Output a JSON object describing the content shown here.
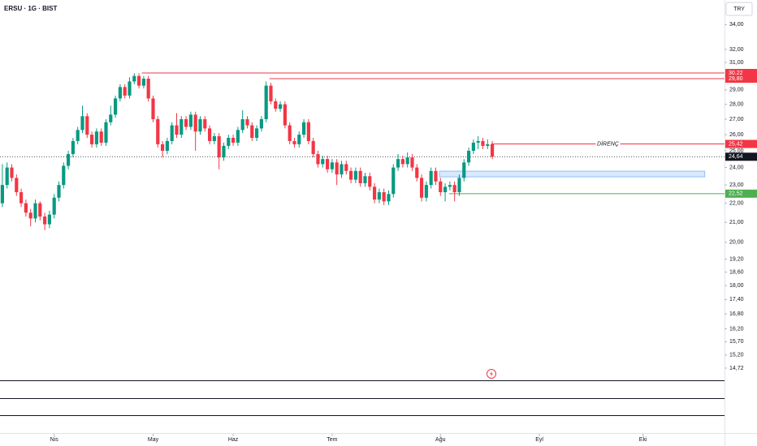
{
  "chart_data": {
    "type": "candlestick",
    "title": "ERSU · 1G · BIST",
    "currency": "TRY",
    "log_scale": true,
    "up_color": "#089981",
    "down_color": "#f23645",
    "xlim": [
      -0.5,
      153.3
    ],
    "xticks": [
      {
        "value": 11,
        "label": "Nis"
      },
      {
        "value": 32,
        "label": "May"
      },
      {
        "value": 49,
        "label": "Haz"
      },
      {
        "value": 70,
        "label": "Tem"
      },
      {
        "value": 93,
        "label": "Ağu"
      },
      {
        "value": 114,
        "label": "Eyl"
      },
      {
        "value": 136,
        "label": "Eki"
      }
    ],
    "ylim": [
      14.29,
      36.1
    ],
    "yticks": [
      {
        "value": 34,
        "label": "34,00"
      },
      {
        "value": 32,
        "label": "32,00"
      },
      {
        "value": 31,
        "label": "31,00"
      },
      {
        "value": 30,
        "label": "30,00"
      },
      {
        "value": 29,
        "label": "29,00"
      },
      {
        "value": 28,
        "label": "28,00"
      },
      {
        "value": 27,
        "label": "27,00"
      },
      {
        "value": 26,
        "label": "26,00"
      },
      {
        "value": 25,
        "label": "25,00"
      },
      {
        "value": 24,
        "label": "24,00"
      },
      {
        "value": 23,
        "label": "23,00"
      },
      {
        "value": 22,
        "label": "22,00"
      },
      {
        "value": 21,
        "label": "21,00"
      },
      {
        "value": 20,
        "label": "20,00"
      },
      {
        "value": 19.2,
        "label": "19,20"
      },
      {
        "value": 18.6,
        "label": "18,60"
      },
      {
        "value": 18,
        "label": "18,00"
      },
      {
        "value": 17.4,
        "label": "17,40"
      },
      {
        "value": 16.8,
        "label": "16,80"
      },
      {
        "value": 16.2,
        "label": "16,20"
      },
      {
        "value": 15.7,
        "label": "15,70"
      },
      {
        "value": 15.2,
        "label": "15,20"
      },
      {
        "value": 14.72,
        "label": "14,72"
      }
    ],
    "ohlc": [
      [
        22.0,
        24.2,
        21.8,
        23.0
      ],
      [
        23.0,
        24.3,
        22.8,
        24.0
      ],
      [
        24.0,
        24.2,
        23.2,
        23.4
      ],
      [
        23.4,
        23.6,
        22.4,
        22.6
      ],
      [
        22.6,
        22.8,
        21.8,
        22.0
      ],
      [
        22.0,
        22.2,
        21.3,
        21.5
      ],
      [
        21.5,
        21.7,
        20.8,
        21.2
      ],
      [
        21.2,
        22.2,
        21.0,
        22.0
      ],
      [
        22.0,
        22.1,
        21.1,
        21.3
      ],
      [
        21.3,
        21.5,
        20.6,
        20.9
      ],
      [
        20.9,
        21.6,
        20.7,
        21.4
      ],
      [
        21.4,
        22.5,
        21.2,
        22.3
      ],
      [
        22.3,
        23.2,
        22.1,
        23.0
      ],
      [
        23.0,
        24.3,
        22.8,
        24.1
      ],
      [
        24.1,
        25.0,
        23.9,
        24.8
      ],
      [
        24.8,
        25.8,
        24.6,
        25.6
      ],
      [
        25.6,
        26.5,
        25.4,
        26.3
      ],
      [
        26.3,
        27.9,
        26.1,
        27.2
      ],
      [
        27.2,
        27.4,
        25.8,
        26.0
      ],
      [
        26.0,
        26.2,
        25.2,
        25.4
      ],
      [
        25.4,
        26.4,
        25.2,
        26.2
      ],
      [
        26.2,
        26.4,
        25.3,
        25.5
      ],
      [
        25.5,
        27.0,
        25.3,
        26.8
      ],
      [
        26.8,
        27.9,
        26.6,
        27.3
      ],
      [
        27.3,
        28.6,
        27.1,
        28.4
      ],
      [
        28.4,
        29.4,
        28.2,
        29.2
      ],
      [
        29.2,
        29.4,
        28.4,
        28.6
      ],
      [
        28.6,
        29.9,
        28.4,
        29.6
      ],
      [
        29.6,
        30.2,
        29.4,
        30.0
      ],
      [
        30.0,
        30.2,
        29.1,
        29.3
      ],
      [
        29.3,
        30.0,
        29.1,
        29.8
      ],
      [
        29.8,
        30.0,
        28.2,
        28.4
      ],
      [
        28.4,
        28.6,
        26.8,
        27.0
      ],
      [
        27.0,
        27.2,
        25.2,
        25.4
      ],
      [
        25.4,
        25.6,
        24.6,
        25.0
      ],
      [
        25.0,
        25.8,
        24.8,
        25.6
      ],
      [
        25.6,
        26.8,
        25.4,
        26.6
      ],
      [
        26.6,
        27.4,
        25.8,
        26.0
      ],
      [
        26.0,
        27.2,
        25.8,
        27.0
      ],
      [
        27.0,
        27.2,
        26.3,
        26.5
      ],
      [
        26.5,
        27.5,
        26.3,
        27.3
      ],
      [
        27.3,
        27.5,
        25.0,
        26.2
      ],
      [
        26.2,
        27.2,
        26.0,
        27.0
      ],
      [
        27.0,
        27.2,
        26.2,
        26.4
      ],
      [
        26.4,
        26.6,
        25.4,
        25.6
      ],
      [
        25.6,
        26.1,
        25.4,
        25.9
      ],
      [
        25.9,
        26.1,
        23.9,
        24.6
      ],
      [
        24.6,
        25.5,
        24.4,
        25.3
      ],
      [
        25.3,
        26.0,
        25.1,
        25.8
      ],
      [
        25.8,
        26.0,
        25.3,
        25.5
      ],
      [
        25.5,
        26.5,
        25.3,
        26.3
      ],
      [
        26.3,
        27.6,
        26.1,
        27.0
      ],
      [
        27.0,
        27.2,
        26.4,
        26.6
      ],
      [
        26.6,
        26.8,
        25.6,
        25.8
      ],
      [
        25.8,
        26.6,
        25.6,
        26.4
      ],
      [
        26.4,
        27.2,
        26.2,
        27.0
      ],
      [
        27.0,
        29.6,
        26.8,
        29.3
      ],
      [
        29.3,
        29.5,
        28.0,
        28.2
      ],
      [
        28.2,
        28.4,
        27.5,
        27.7
      ],
      [
        27.7,
        28.2,
        27.5,
        28.0
      ],
      [
        28.0,
        28.2,
        26.4,
        26.6
      ],
      [
        26.6,
        26.8,
        25.4,
        25.6
      ],
      [
        25.6,
        25.8,
        25.2,
        25.4
      ],
      [
        25.4,
        26.2,
        25.2,
        26.0
      ],
      [
        26.0,
        27.0,
        25.8,
        26.8
      ],
      [
        26.8,
        27.0,
        25.4,
        25.6
      ],
      [
        25.6,
        25.8,
        24.6,
        24.8
      ],
      [
        24.8,
        25.0,
        24.0,
        24.2
      ],
      [
        24.2,
        24.7,
        24.0,
        24.5
      ],
      [
        24.5,
        24.7,
        23.7,
        23.9
      ],
      [
        23.9,
        24.5,
        23.7,
        24.3
      ],
      [
        24.3,
        24.5,
        23.0,
        23.6
      ],
      [
        23.6,
        24.4,
        23.4,
        24.2
      ],
      [
        24.2,
        24.4,
        23.6,
        23.8
      ],
      [
        23.8,
        24.0,
        23.1,
        23.3
      ],
      [
        23.3,
        24.0,
        23.1,
        23.8
      ],
      [
        23.8,
        24.0,
        22.9,
        23.1
      ],
      [
        23.1,
        23.7,
        22.9,
        23.5
      ],
      [
        23.5,
        23.7,
        22.7,
        22.9
      ],
      [
        22.9,
        23.1,
        22.0,
        22.2
      ],
      [
        22.2,
        22.8,
        22.0,
        22.6
      ],
      [
        22.6,
        22.8,
        21.9,
        22.1
      ],
      [
        22.1,
        22.7,
        21.9,
        22.5
      ],
      [
        22.5,
        24.2,
        22.3,
        24.0
      ],
      [
        24.0,
        24.8,
        23.8,
        24.5
      ],
      [
        24.5,
        24.7,
        24.0,
        24.2
      ],
      [
        24.2,
        24.9,
        24.0,
        24.6
      ],
      [
        24.6,
        24.8,
        23.8,
        24.0
      ],
      [
        24.0,
        24.2,
        23.2,
        23.4
      ],
      [
        23.4,
        23.6,
        22.1,
        22.3
      ],
      [
        22.3,
        23.2,
        22.1,
        23.0
      ],
      [
        23.0,
        24.0,
        22.8,
        23.8
      ],
      [
        23.8,
        24.0,
        23.0,
        23.2
      ],
      [
        23.2,
        23.4,
        22.4,
        22.6
      ],
      [
        22.6,
        23.1,
        22.1,
        22.9
      ],
      [
        22.9,
        23.2,
        22.7,
        23.0
      ],
      [
        23.0,
        23.2,
        22.1,
        22.6
      ],
      [
        22.6,
        23.6,
        22.4,
        23.4
      ],
      [
        23.4,
        24.5,
        23.2,
        24.3
      ],
      [
        24.3,
        25.2,
        24.1,
        25.0
      ],
      [
        25.0,
        25.7,
        24.8,
        25.5
      ],
      [
        25.5,
        25.9,
        25.1,
        25.6
      ],
      [
        25.6,
        25.8,
        25.1,
        25.3
      ],
      [
        25.3,
        25.7,
        25.1,
        25.4
      ],
      [
        25.4,
        25.6,
        24.5,
        24.64
      ]
    ],
    "levels": [
      {
        "value": 30.22,
        "label": "30,22",
        "x0": 29.6,
        "color": "#f23645"
      },
      {
        "value": 29.8,
        "label": "29,80",
        "x0": 56.7,
        "color": "#f23645"
      },
      {
        "value": 25.42,
        "label": "25,42",
        "x0": 103.8,
        "color": "#f23645",
        "text": "DİRENÇ"
      },
      {
        "value": 22.52,
        "label": "22,52",
        "x0": 94.8,
        "color": "#4caf50"
      }
    ],
    "zone": {
      "y": [
        23.46,
        23.79
      ],
      "x": [
        92.8,
        149.1
      ],
      "color": "#90bff9"
    },
    "last_price": {
      "value": 24.64,
      "label": "24,64"
    }
  }
}
